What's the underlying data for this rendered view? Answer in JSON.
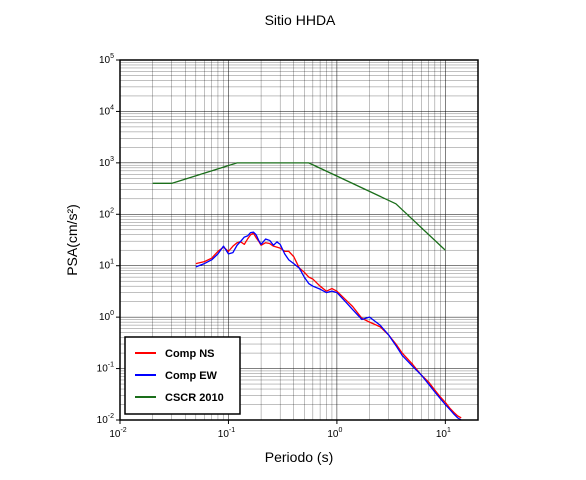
{
  "chart_data": {
    "type": "line",
    "title": "Sitio HHDA",
    "xlabel": "Periodo (s)",
    "ylabel": "PSA(cm/s²)",
    "x_scale": "log",
    "y_scale": "log",
    "xlim": [
      0.01,
      20
    ],
    "ylim": [
      0.01,
      100000
    ],
    "grid": true,
    "legend_position": "bottom-left",
    "x_ticks": [
      {
        "base": "10",
        "exp": "-2",
        "value": 0.01
      },
      {
        "base": "10",
        "exp": "-1",
        "value": 0.1
      },
      {
        "base": "10",
        "exp": "0",
        "value": 1
      },
      {
        "base": "10",
        "exp": "1",
        "value": 10
      }
    ],
    "y_ticks": [
      {
        "base": "10",
        "exp": "-2",
        "value": 0.01
      },
      {
        "base": "10",
        "exp": "-1",
        "value": 0.1
      },
      {
        "base": "10",
        "exp": "0",
        "value": 1
      },
      {
        "base": "10",
        "exp": "1",
        "value": 10
      },
      {
        "base": "10",
        "exp": "2",
        "value": 100
      },
      {
        "base": "10",
        "exp": "3",
        "value": 1000
      },
      {
        "base": "10",
        "exp": "4",
        "value": 10000
      },
      {
        "base": "10",
        "exp": "5",
        "value": 100000
      }
    ],
    "series": [
      {
        "name": "Comp NS",
        "color": "#ff0000",
        "points": [
          [
            0.05,
            11
          ],
          [
            0.06,
            12
          ],
          [
            0.07,
            14
          ],
          [
            0.08,
            19
          ],
          [
            0.09,
            23
          ],
          [
            0.1,
            19
          ],
          [
            0.11,
            24
          ],
          [
            0.12,
            28
          ],
          [
            0.13,
            29
          ],
          [
            0.14,
            26
          ],
          [
            0.15,
            33
          ],
          [
            0.16,
            40
          ],
          [
            0.17,
            43
          ],
          [
            0.18,
            35
          ],
          [
            0.19,
            30
          ],
          [
            0.2,
            25
          ],
          [
            0.22,
            28
          ],
          [
            0.24,
            27
          ],
          [
            0.26,
            24
          ],
          [
            0.3,
            22
          ],
          [
            0.33,
            19
          ],
          [
            0.36,
            19
          ],
          [
            0.4,
            15
          ],
          [
            0.45,
            9
          ],
          [
            0.5,
            7.5
          ],
          [
            0.55,
            6
          ],
          [
            0.6,
            5.5
          ],
          [
            0.7,
            4
          ],
          [
            0.8,
            3.2
          ],
          [
            0.9,
            3.6
          ],
          [
            1.0,
            3.2
          ],
          [
            1.2,
            2.2
          ],
          [
            1.4,
            1.6
          ],
          [
            1.7,
            0.95
          ],
          [
            2.0,
            0.8
          ],
          [
            2.5,
            0.65
          ],
          [
            3.0,
            0.45
          ],
          [
            3.5,
            0.3
          ],
          [
            4.0,
            0.2
          ],
          [
            5.0,
            0.12
          ],
          [
            6.0,
            0.075
          ],
          [
            7.0,
            0.055
          ],
          [
            8.0,
            0.038
          ],
          [
            9.0,
            0.028
          ],
          [
            10.0,
            0.022
          ],
          [
            11.0,
            0.017
          ],
          [
            12.0,
            0.014
          ],
          [
            13.0,
            0.012
          ],
          [
            14.0,
            0.011
          ]
        ]
      },
      {
        "name": "Comp EW",
        "color": "#0000ff",
        "points": [
          [
            0.05,
            9.5
          ],
          [
            0.06,
            11
          ],
          [
            0.07,
            13
          ],
          [
            0.08,
            17
          ],
          [
            0.09,
            24
          ],
          [
            0.1,
            17
          ],
          [
            0.11,
            18
          ],
          [
            0.12,
            25
          ],
          [
            0.13,
            30
          ],
          [
            0.14,
            36
          ],
          [
            0.15,
            38
          ],
          [
            0.16,
            44
          ],
          [
            0.17,
            45
          ],
          [
            0.18,
            40
          ],
          [
            0.19,
            31
          ],
          [
            0.2,
            26
          ],
          [
            0.22,
            33
          ],
          [
            0.24,
            31
          ],
          [
            0.26,
            25
          ],
          [
            0.28,
            29
          ],
          [
            0.3,
            26
          ],
          [
            0.33,
            17
          ],
          [
            0.36,
            13
          ],
          [
            0.4,
            11
          ],
          [
            0.45,
            9
          ],
          [
            0.5,
            6
          ],
          [
            0.55,
            4.5
          ],
          [
            0.6,
            4
          ],
          [
            0.7,
            3.5
          ],
          [
            0.8,
            3.0
          ],
          [
            0.9,
            3.2
          ],
          [
            1.0,
            3.0
          ],
          [
            1.2,
            2.0
          ],
          [
            1.4,
            1.4
          ],
          [
            1.7,
            0.9
          ],
          [
            2.0,
            1.0
          ],
          [
            2.5,
            0.7
          ],
          [
            3.0,
            0.45
          ],
          [
            3.5,
            0.28
          ],
          [
            4.0,
            0.18
          ],
          [
            5.0,
            0.11
          ],
          [
            6.0,
            0.075
          ],
          [
            7.0,
            0.05
          ],
          [
            8.0,
            0.035
          ],
          [
            9.0,
            0.026
          ],
          [
            10.0,
            0.02
          ],
          [
            11.0,
            0.016
          ],
          [
            12.0,
            0.013
          ],
          [
            13.0,
            0.011
          ],
          [
            14.0,
            0.01
          ]
        ]
      },
      {
        "name": "CSCR 2010",
        "color": "#1a6e1a",
        "points": [
          [
            0.02,
            400
          ],
          [
            0.03,
            400
          ],
          [
            0.12,
            1000
          ],
          [
            0.55,
            1000
          ],
          [
            3.5,
            160
          ],
          [
            10.0,
            20
          ]
        ]
      }
    ]
  }
}
